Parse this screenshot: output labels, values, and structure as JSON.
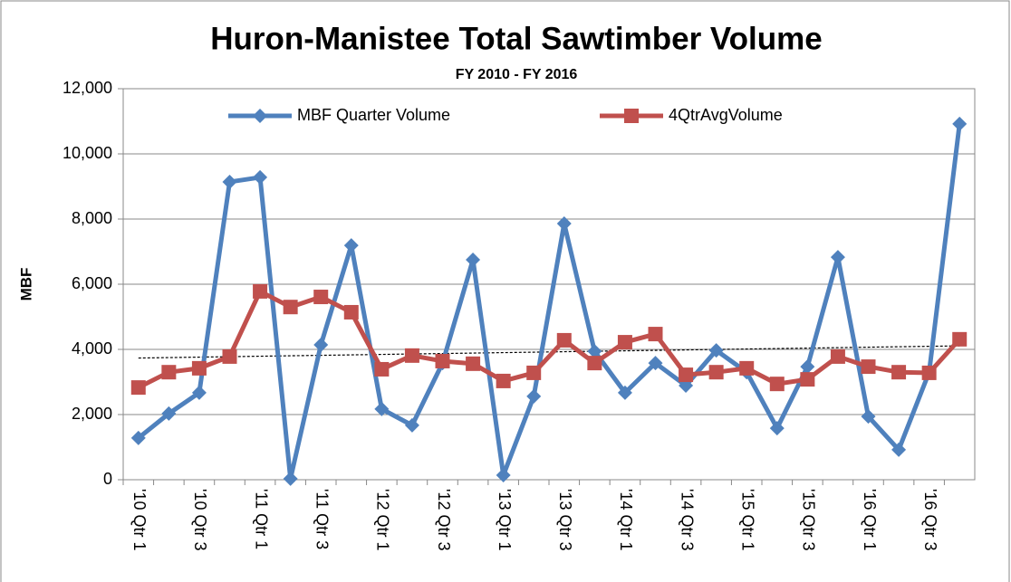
{
  "chart_data": {
    "type": "line",
    "title": "Huron-Manistee Total Sawtimber Volume",
    "subtitle": "FY 2010 - FY 2016",
    "y_label": "MBF",
    "categories": [
      "'10 Qtr 1",
      null,
      "'10 Qtr 3",
      null,
      "'11 Qtr 1",
      null,
      "'11 Qtr 3",
      null,
      "'12 Qtr 1",
      null,
      "'12 Qtr 3",
      null,
      "'13 Qtr 1",
      null,
      "'13 Qtr 3",
      null,
      "'14 Qtr 1",
      null,
      "'14 Qtr 3",
      null,
      "'15 Qtr 1",
      null,
      "'15 Qtr 3",
      null,
      "'16 Qtr 1",
      null,
      "'16 Qtr 3",
      null
    ],
    "series": [
      {
        "name": "MBF Quarter Volume",
        "color": "#4f81bd",
        "marker": "diamond",
        "values": [
          1280,
          2030,
          2670,
          9140,
          9280,
          30,
          4140,
          7190,
          2170,
          1670,
          3580,
          6750,
          140,
          2560,
          7860,
          3940,
          2670,
          3580,
          2890,
          3970,
          3300,
          1580,
          3470,
          6830,
          1940,
          920,
          3300,
          10920
        ]
      },
      {
        "name": "4QtrAvgVolume",
        "color": "#c0504d",
        "marker": "square",
        "values": [
          2830,
          3300,
          3420,
          3780,
          5780,
          5300,
          5610,
          5140,
          3390,
          3810,
          3640,
          3560,
          3030,
          3280,
          4280,
          3580,
          4220,
          4470,
          3220,
          3300,
          3420,
          2940,
          3080,
          3780,
          3470,
          3300,
          3280,
          4310
        ]
      }
    ],
    "trendline": true,
    "ylim": [
      0,
      12000
    ],
    "yticks": [
      0,
      {
        "value": 2000,
        "label": "2,000"
      },
      {
        "value": 4000,
        "label": "4,000"
      },
      {
        "value": 6000,
        "label": "6,000"
      },
      {
        "value": 8000,
        "label": "8,000"
      },
      {
        "value": 10000,
        "label": "10,000"
      },
      {
        "value": 12000,
        "label": "12,000"
      }
    ],
    "grid": true,
    "legend": "top"
  }
}
